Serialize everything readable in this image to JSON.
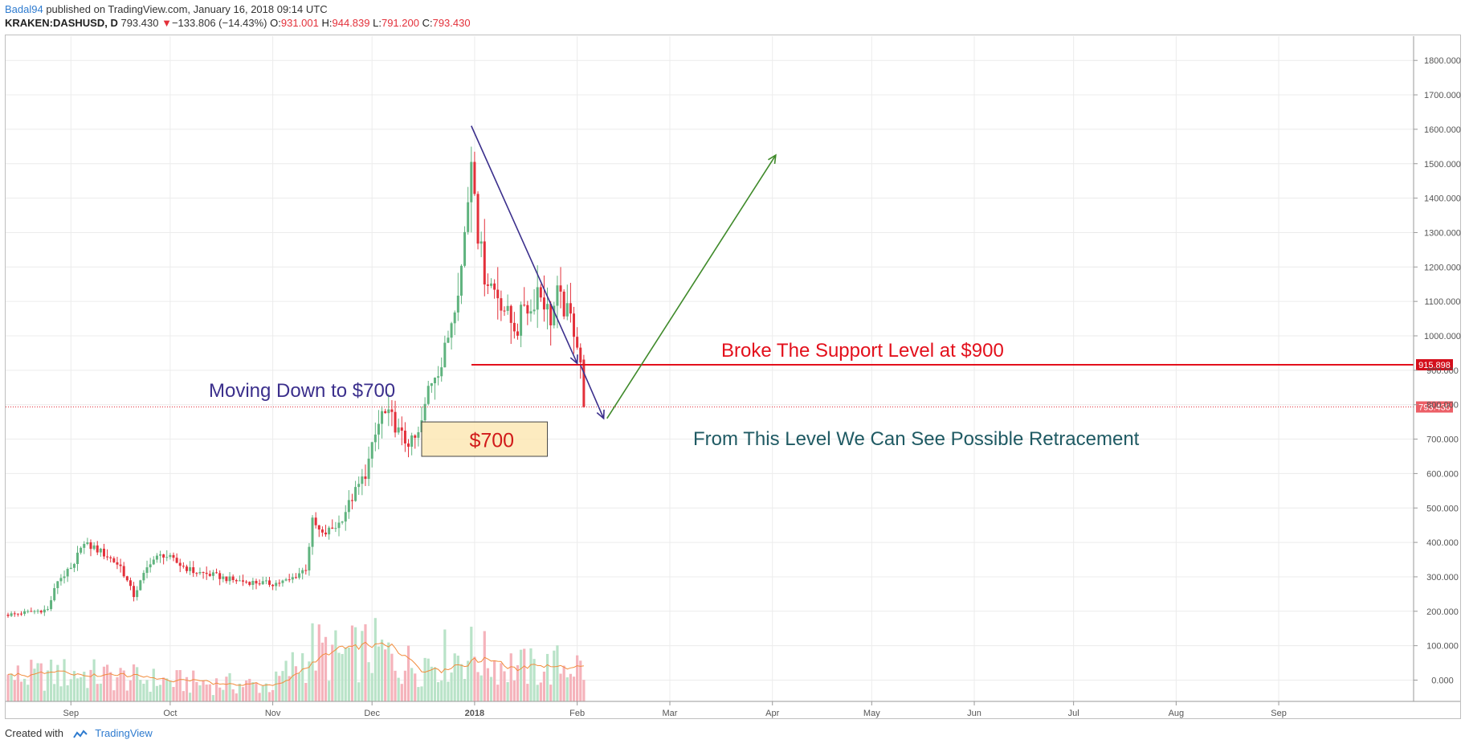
{
  "header": {
    "author": "Badal94",
    "published_text": " published on TradingView.com, January 16, 2018 09:14 UTC"
  },
  "symbol_line": {
    "symbol": "KRAKEN:DASHUSD, D",
    "last": "793.430",
    "change": "−133.806 (−14.43%)",
    "open_label": "O:",
    "open": "931.001",
    "high_label": "H:",
    "high": "944.839",
    "low_label": "L:",
    "low": "791.200",
    "close_label": "C:",
    "close": "793.430"
  },
  "footer": {
    "created_with": "Created with",
    "brand": "TradingView"
  },
  "colors": {
    "up": "#5fb37e",
    "down": "#e3303a",
    "vol_up": "#b9e3c8",
    "vol_down": "#f5b3bb",
    "ma": "#f28c3c",
    "support": "#e3101c",
    "purple_arrow": "#3b2f8c",
    "green_arrow": "#3f8a2a",
    "box_fill": "#fde7b5",
    "box_stroke": "#444444",
    "grid": "#ececec",
    "axis_text": "#555555"
  },
  "chart_data": {
    "type": "candlestick",
    "symbol": "KRAKEN:DASHUSD",
    "interval": "D",
    "x_axis": {
      "labels": [
        "Sep",
        "Oct",
        "Nov",
        "Dec",
        "2018",
        "Feb",
        "Mar",
        "Apr",
        "May",
        "Jun",
        "Jul",
        "Aug",
        "Sep"
      ],
      "label_days": [
        19,
        49,
        80,
        110,
        141,
        172,
        200,
        231,
        261,
        292,
        322,
        353,
        384
      ]
    },
    "y_axis": {
      "ticks": [
        0,
        100,
        200,
        300,
        400,
        500,
        600,
        700,
        800,
        900,
        1000,
        1100,
        1200,
        1300,
        1400,
        1500,
        1600,
        1700,
        1800
      ],
      "tick_labels": [
        "0.000",
        "100.000",
        "200.000",
        "300.000",
        "400.000",
        "500.000",
        "600.000",
        "700.000",
        "800.000",
        "900.000",
        "1000.000",
        "1100.000",
        "1200.000",
        "1300.000",
        "1400.000",
        "1500.000",
        "1600.000",
        "1700.000",
        "1800.000"
      ],
      "range": [
        -60,
        1810
      ]
    },
    "price_keypoints": [
      [
        0,
        190
      ],
      [
        12,
        205
      ],
      [
        15,
        290
      ],
      [
        20,
        330
      ],
      [
        22,
        395
      ],
      [
        26,
        385
      ],
      [
        30,
        360
      ],
      [
        34,
        330
      ],
      [
        38,
        245
      ],
      [
        43,
        345
      ],
      [
        47,
        365
      ],
      [
        52,
        335
      ],
      [
        56,
        315
      ],
      [
        62,
        305
      ],
      [
        68,
        290
      ],
      [
        73,
        285
      ],
      [
        80,
        280
      ],
      [
        85,
        290
      ],
      [
        90,
        325
      ],
      [
        92,
        460
      ],
      [
        95,
        420
      ],
      [
        100,
        455
      ],
      [
        104,
        530
      ],
      [
        108,
        600
      ],
      [
        111,
        710
      ],
      [
        113,
        775
      ],
      [
        116,
        760
      ],
      [
        118,
        720
      ],
      [
        120,
        695
      ],
      [
        122,
        690
      ],
      [
        124,
        710
      ],
      [
        126,
        790
      ],
      [
        127,
        850
      ],
      [
        129,
        895
      ],
      [
        131,
        915
      ],
      [
        133,
        1000
      ],
      [
        135,
        1100
      ],
      [
        137,
        1200
      ],
      [
        139,
        1400
      ],
      [
        140,
        1520
      ],
      [
        141,
        1450
      ],
      [
        142,
        1300
      ],
      [
        144,
        1180
      ],
      [
        146,
        1150
      ],
      [
        148,
        1120
      ],
      [
        150,
        1080
      ],
      [
        152,
        1040
      ],
      [
        154,
        1020
      ],
      [
        156,
        1100
      ],
      [
        158,
        1070
      ],
      [
        160,
        1140
      ],
      [
        162,
        1100
      ],
      [
        164,
        1050
      ],
      [
        166,
        1120
      ],
      [
        168,
        1080
      ],
      [
        170,
        1050
      ],
      [
        171,
        1020
      ],
      [
        172,
        985
      ],
      [
        173,
        927
      ],
      [
        174,
        793.43
      ]
    ],
    "volume_keypoints": [
      [
        0,
        60
      ],
      [
        20,
        70
      ],
      [
        40,
        55
      ],
      [
        60,
        45
      ],
      [
        80,
        40
      ],
      [
        92,
        130
      ],
      [
        100,
        110
      ],
      [
        110,
        130
      ],
      [
        120,
        90
      ],
      [
        130,
        110
      ],
      [
        140,
        120
      ],
      [
        150,
        90
      ],
      [
        160,
        80
      ],
      [
        170,
        95
      ],
      [
        174,
        80
      ]
    ],
    "volume_scale_max": 220,
    "last_price": 793.43,
    "last_price_label": "793.430",
    "support_level": 915.898,
    "support_label": "915.898",
    "annotations": [
      {
        "text": "Broke The Support Level at $900",
        "color": "#e3101c"
      },
      {
        "text": "Moving Down to $700",
        "color": "#3b2f8c"
      },
      {
        "text": "$700",
        "color": "#d11a1a"
      },
      {
        "text": "From This Level We Can See Possible Retracement",
        "color": "#1f5a63"
      }
    ],
    "zone_box": {
      "day_start": 125,
      "day_end": 163,
      "price_low": 650,
      "price_high": 750
    },
    "arrows": [
      {
        "from": [
          140,
          1610
        ],
        "to": [
          172,
          920
        ],
        "color": "#3b2f8c"
      },
      {
        "from": [
          173,
          915
        ],
        "to": [
          180,
          760
        ],
        "color": "#3b2f8c"
      },
      {
        "from": [
          181,
          760
        ],
        "to": [
          232,
          1525
        ],
        "color": "#3f8a2a"
      }
    ],
    "grid": true
  }
}
